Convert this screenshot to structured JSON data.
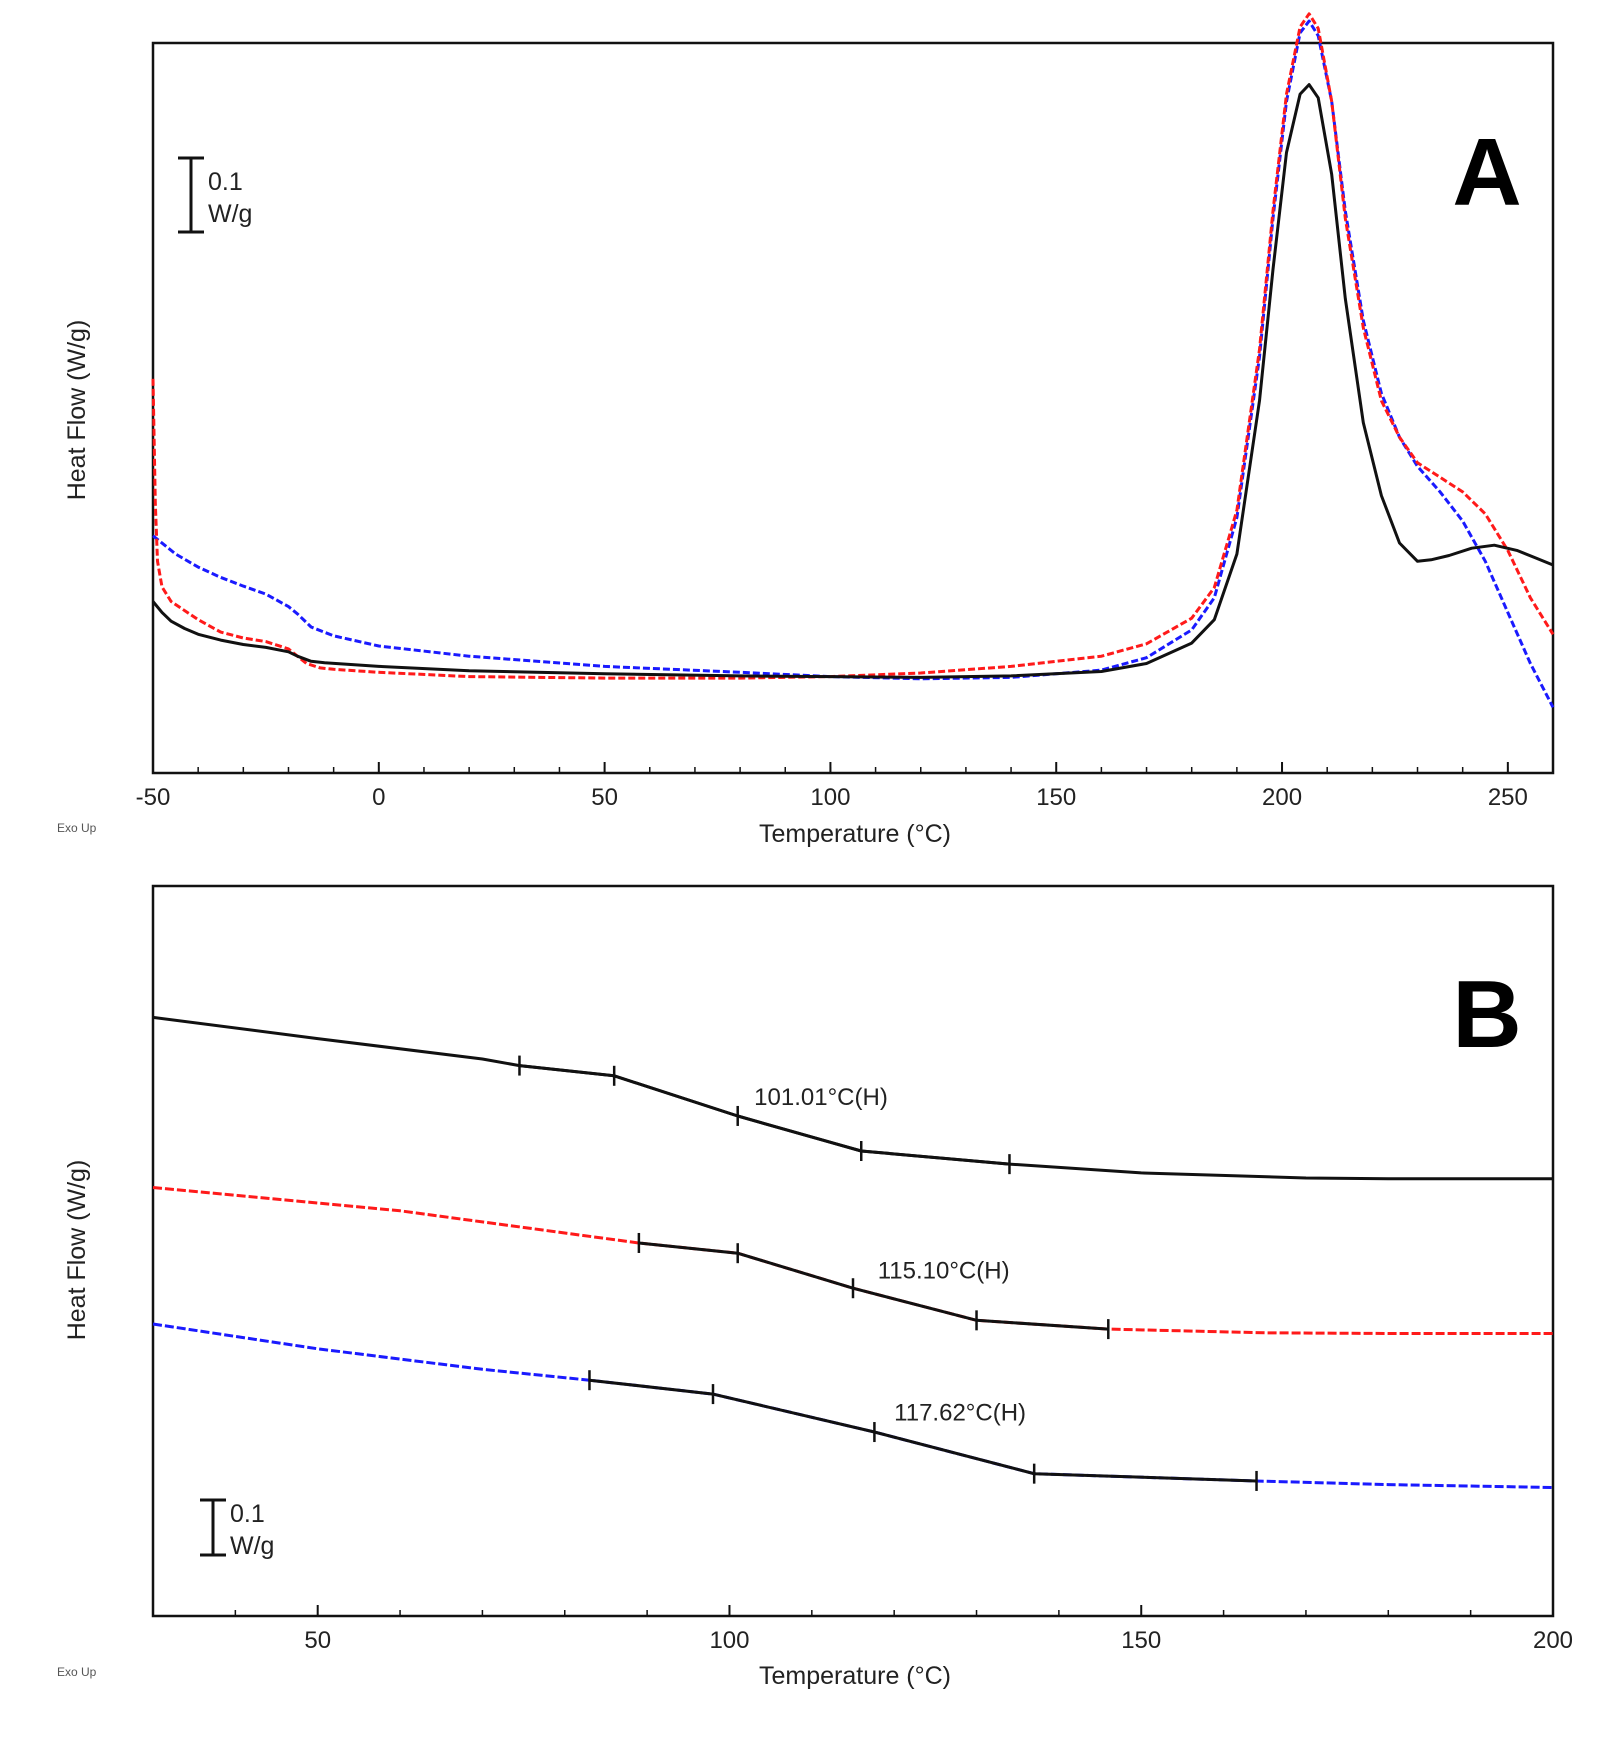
{
  "chart_data": [
    {
      "type": "line",
      "panel": "A",
      "panel_label": "A",
      "xlabel": "Temperature (°C)",
      "ylabel": "Heat Flow (W/g)",
      "xlim": [
        -50,
        260
      ],
      "ylim": [
        0,
        1.0
      ],
      "xticks": [
        -50,
        0,
        50,
        100,
        150,
        200,
        250
      ],
      "grid": false,
      "exo_label": "Exo Up",
      "scale_bar": {
        "value": 0.1,
        "line1": "0.1",
        "line2": "W/g"
      },
      "series": [
        {
          "name": "",
          "color": "#1a1aff",
          "dash": "7,3",
          "x": [
            -50,
            -45,
            -40,
            -35,
            -30,
            -25,
            -20,
            -18,
            -15,
            -10,
            0,
            20,
            50,
            80,
            100,
            120,
            140,
            160,
            170,
            180,
            185,
            190,
            195,
            198,
            201,
            204,
            206,
            208,
            211,
            214,
            218,
            222,
            226,
            230,
            235,
            240,
            245,
            250,
            255,
            260
          ],
          "y": [
            0.325,
            0.3,
            0.282,
            0.268,
            0.256,
            0.245,
            0.228,
            0.218,
            0.2,
            0.188,
            0.174,
            0.16,
            0.146,
            0.138,
            0.132,
            0.129,
            0.131,
            0.141,
            0.158,
            0.196,
            0.24,
            0.35,
            0.57,
            0.76,
            0.92,
            1.014,
            1.03,
            1.01,
            0.92,
            0.77,
            0.62,
            0.52,
            0.46,
            0.42,
            0.385,
            0.345,
            0.29,
            0.22,
            0.15,
            0.09
          ]
        },
        {
          "name": "",
          "color": "#ff1a1a",
          "dash": "7,3",
          "x": [
            -50,
            -49.5,
            -49,
            -48,
            -46,
            -40,
            -35,
            -30,
            -25,
            -20,
            -18,
            -16,
            -13,
            -10,
            0,
            20,
            50,
            80,
            100,
            120,
            140,
            160,
            170,
            180,
            185,
            190,
            195,
            198,
            201,
            204,
            206,
            208,
            211,
            214,
            218,
            222,
            226,
            230,
            235,
            240,
            245,
            250,
            255,
            260
          ],
          "y": [
            0.54,
            0.37,
            0.29,
            0.255,
            0.235,
            0.21,
            0.193,
            0.185,
            0.18,
            0.17,
            0.16,
            0.15,
            0.144,
            0.142,
            0.138,
            0.132,
            0.13,
            0.13,
            0.132,
            0.137,
            0.146,
            0.16,
            0.177,
            0.212,
            0.254,
            0.36,
            0.58,
            0.77,
            0.93,
            1.022,
            1.04,
            1.02,
            0.92,
            0.76,
            0.61,
            0.51,
            0.46,
            0.425,
            0.405,
            0.385,
            0.355,
            0.305,
            0.24,
            0.19
          ]
        },
        {
          "name": "",
          "color": "#111111",
          "dash": "",
          "x": [
            -50,
            -48,
            -46,
            -43,
            -40,
            -35,
            -30,
            -25,
            -20,
            -18,
            -15,
            -12,
            0,
            20,
            50,
            80,
            100,
            120,
            140,
            160,
            170,
            180,
            185,
            190,
            195,
            198,
            201,
            204,
            206,
            208,
            211,
            214,
            218,
            222,
            226,
            230,
            233,
            237,
            242,
            247,
            252,
            256,
            260
          ],
          "y": [
            0.235,
            0.22,
            0.208,
            0.198,
            0.19,
            0.182,
            0.176,
            0.172,
            0.166,
            0.16,
            0.153,
            0.151,
            0.146,
            0.14,
            0.136,
            0.133,
            0.132,
            0.131,
            0.133,
            0.139,
            0.15,
            0.178,
            0.21,
            0.3,
            0.51,
            0.69,
            0.85,
            0.93,
            0.943,
            0.925,
            0.82,
            0.65,
            0.48,
            0.38,
            0.315,
            0.29,
            0.292,
            0.298,
            0.308,
            0.312,
            0.305,
            0.295,
            0.285
          ]
        }
      ]
    },
    {
      "type": "line",
      "panel": "B",
      "panel_label": "B",
      "xlabel": "Temperature (°C)",
      "ylabel": "Heat Flow (W/g)",
      "xlim": [
        30,
        200
      ],
      "ylim": [
        0,
        1.0
      ],
      "xticks": [
        50,
        100,
        150,
        200
      ],
      "grid": false,
      "exo_label": "Exo Up",
      "scale_bar": {
        "value": 0.1,
        "line1": "0.1",
        "line2": "W/g"
      },
      "series": [
        {
          "name": "",
          "color": "#111111",
          "dash": "",
          "x": [
            30,
            50,
            70,
            74.5,
            86,
            101,
            116,
            134,
            150,
            170,
            180,
            200
          ],
          "y": [
            0.82,
            0.791,
            0.763,
            0.754,
            0.74,
            0.685,
            0.637,
            0.619,
            0.607,
            0.6,
            0.599,
            0.599
          ]
        },
        {
          "name": "",
          "color": "#ff1a1a",
          "dash": "9,3",
          "x": [
            30,
            60,
            89,
            101,
            115,
            130,
            146,
            165,
            180,
            200
          ],
          "y": [
            0.587,
            0.555,
            0.511,
            0.497,
            0.449,
            0.405,
            0.393,
            0.388,
            0.387,
            0.387
          ]
        },
        {
          "name": "",
          "color": "#1a1aff",
          "dash": "9,3",
          "x": [
            30,
            50,
            70,
            83,
            98,
            117.6,
            137,
            164,
            180,
            200
          ],
          "y": [
            0.4,
            0.366,
            0.338,
            0.323,
            0.304,
            0.252,
            0.195,
            0.185,
            0.18,
            0.176
          ]
        }
      ],
      "onset_marks": [
        {
          "color": "#111111",
          "x": [
            74.5,
            86,
            101,
            116,
            134
          ],
          "y": [
            0.754,
            0.74,
            0.685,
            0.637,
            0.619
          ]
        },
        {
          "color": "#111111",
          "x": [
            89,
            101,
            115,
            130,
            146
          ],
          "y": [
            0.511,
            0.497,
            0.449,
            0.405,
            0.393
          ]
        },
        {
          "color": "#111111",
          "x": [
            83,
            98,
            117.6,
            137,
            164
          ],
          "y": [
            0.323,
            0.304,
            0.252,
            0.195,
            0.185
          ]
        }
      ],
      "annotations": [
        {
          "text": "101.01°C(H)",
          "x": 103,
          "y": 0.7
        },
        {
          "text": "115.10°C(H)",
          "x": 118,
          "y": 0.462
        },
        {
          "text": "117.62°C(H)",
          "x": 120,
          "y": 0.268
        }
      ]
    }
  ]
}
